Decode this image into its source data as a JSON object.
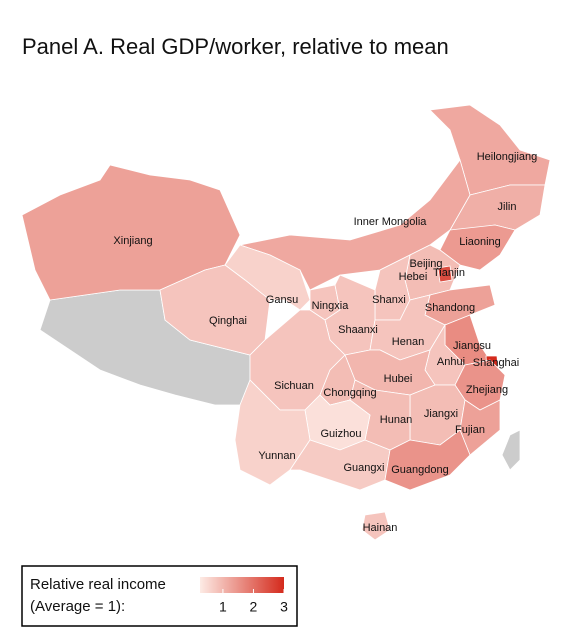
{
  "chart_data": {
    "type": "choropleth",
    "title": "Panel A. Real GDP/worker, relative to mean",
    "regions": [
      {
        "name": "Heilongjiang",
        "value": 1.2
      },
      {
        "name": "Jilin",
        "value": 1.1
      },
      {
        "name": "Inner Mongolia",
        "value": 1.2
      },
      {
        "name": "Liaoning",
        "value": 1.4
      },
      {
        "name": "Xinjiang",
        "value": 1.3
      },
      {
        "name": "Beijing",
        "value": 2.6
      },
      {
        "name": "Hebei",
        "value": 0.9
      },
      {
        "name": "Tianjin",
        "value": 2.5
      },
      {
        "name": "Gansu",
        "value": 0.6
      },
      {
        "name": "Ningxia",
        "value": 0.8
      },
      {
        "name": "Shanxi",
        "value": 0.8
      },
      {
        "name": "Shandong",
        "value": 1.3
      },
      {
        "name": "Qinghai",
        "value": 0.8
      },
      {
        "name": "Shaanxi",
        "value": 0.8
      },
      {
        "name": "Henan",
        "value": 0.8
      },
      {
        "name": "Jiangsu",
        "value": 1.6
      },
      {
        "name": "Anhui",
        "value": 0.8
      },
      {
        "name": "Shanghai",
        "value": 3
      },
      {
        "name": "Hubei",
        "value": 1.0
      },
      {
        "name": "Sichuan",
        "value": 0.8
      },
      {
        "name": "Chongqing",
        "value": 0.9
      },
      {
        "name": "Zhejiang",
        "value": 1.5
      },
      {
        "name": "Jiangxi",
        "value": 0.9
      },
      {
        "name": "Hunan",
        "value": 0.9
      },
      {
        "name": "Fujian",
        "value": 1.3
      },
      {
        "name": "Guizhou",
        "value": 0.4
      },
      {
        "name": "Yunnan",
        "value": 0.6
      },
      {
        "name": "Guangxi",
        "value": 0.7
      },
      {
        "name": "Guangdong",
        "value": 1.5
      },
      {
        "name": "Hainan",
        "value": 0.8
      }
    ],
    "color_low": "#fdebe5",
    "color_high": "#d42a1c",
    "missing_color": "#cccccc",
    "colorlim": [
      0.25,
      3
    ],
    "legend_title": [
      "Relative real income",
      "(Average = 1):"
    ],
    "legend_ticks": [
      1,
      2,
      3
    ]
  }
}
